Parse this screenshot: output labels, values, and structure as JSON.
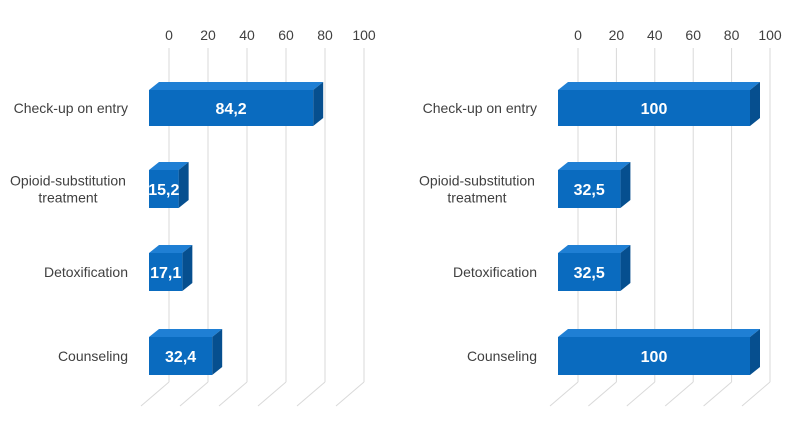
{
  "chart_data": [
    {
      "type": "bar",
      "orientation": "horizontal",
      "style": "3d",
      "categories": [
        "Check-up on entry",
        "Opioid-substitution treatment",
        "Detoxification",
        "Counseling"
      ],
      "category_lines": [
        [
          "Check-up on entry"
        ],
        [
          "Opioid-substitution",
          "treatment"
        ],
        [
          "Detoxification"
        ],
        [
          "Counseling"
        ]
      ],
      "values": [
        84.2,
        15.2,
        17.1,
        32.4
      ],
      "value_labels": [
        "84,2",
        "15,2",
        "17,1",
        "32,4"
      ],
      "xlim": [
        0,
        100
      ],
      "ticks": [
        "0",
        "20",
        "40",
        "60",
        "80",
        "100"
      ],
      "grid": true,
      "bar_color": "#0a6bbf"
    },
    {
      "type": "bar",
      "orientation": "horizontal",
      "style": "3d",
      "categories": [
        "Check-up on entry",
        "Opioid-substitution treatment",
        "Detoxification",
        "Counseling"
      ],
      "category_lines": [
        [
          "Check-up on entry"
        ],
        [
          "Opioid-substitution",
          "treatment"
        ],
        [
          "Detoxification"
        ],
        [
          "Counseling"
        ]
      ],
      "values": [
        100,
        32.5,
        32.5,
        100
      ],
      "value_labels": [
        "100",
        "32,5",
        "32,5",
        "100"
      ],
      "xlim": [
        0,
        100
      ],
      "ticks": [
        "0",
        "20",
        "40",
        "60",
        "80",
        "100"
      ],
      "grid": true,
      "bar_color": "#0a6bbf"
    }
  ]
}
